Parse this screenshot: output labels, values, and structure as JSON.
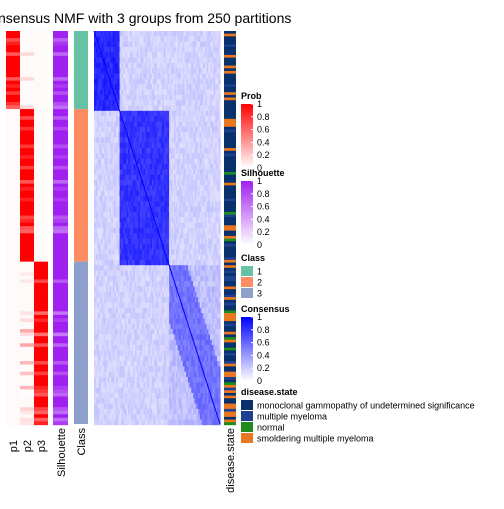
{
  "chart_data": {
    "type": "heatmap",
    "title": "nsensus NMF with 3 groups from 250 partitions",
    "group_order": [
      1,
      1,
      1,
      1,
      1,
      1,
      1,
      1,
      1,
      1,
      1,
      1,
      1,
      1,
      1,
      1,
      1,
      1,
      1,
      1,
      1,
      1,
      1,
      1,
      1,
      1,
      1,
      1,
      1,
      1,
      1,
      1,
      1,
      1,
      1,
      1,
      1,
      1,
      1,
      1,
      1,
      1,
      1,
      1,
      1,
      1,
      1,
      1,
      1,
      1,
      1,
      1,
      1,
      1,
      1,
      1,
      1,
      1,
      1,
      1,
      1,
      1,
      1,
      1,
      1,
      1,
      1,
      1,
      1,
      1,
      1,
      1,
      1,
      1,
      1,
      1,
      1,
      1,
      1,
      1,
      1,
      1,
      1,
      1,
      1,
      1,
      1,
      1,
      2,
      2,
      2,
      2,
      2,
      2,
      2,
      2,
      2,
      2,
      2,
      2,
      2,
      2,
      2,
      2,
      2,
      2,
      2,
      2,
      2,
      2,
      2,
      2,
      2,
      2,
      2,
      2,
      2,
      2,
      2,
      2,
      2,
      2,
      2,
      2,
      2,
      2,
      2,
      2,
      2,
      2,
      2,
      2,
      2,
      2,
      2,
      2,
      2,
      2,
      2,
      2,
      2,
      2,
      2,
      2,
      2,
      2,
      2,
      2,
      2,
      2,
      2,
      2,
      2,
      2,
      2,
      2,
      2,
      2,
      2,
      2,
      2,
      2,
      2,
      2,
      2,
      2,
      2,
      2,
      2,
      2,
      2,
      2,
      2,
      2,
      2,
      2,
      2,
      2,
      2,
      2,
      2,
      2,
      2,
      2,
      2,
      2,
      2,
      2,
      2,
      2,
      2,
      2,
      2,
      2,
      2,
      2,
      2,
      2,
      2,
      2,
      2,
      2,
      2,
      2,
      2,
      2,
      2,
      2,
      2,
      2,
      2,
      2,
      2,
      2,
      2,
      2,
      2,
      2,
      2,
      2,
      2,
      2,
      2,
      2,
      2,
      2,
      2,
      2,
      2,
      2,
      2,
      2,
      2,
      2,
      2,
      2,
      2,
      2,
      2,
      2,
      2,
      2,
      2,
      2,
      2,
      2,
      2,
      2,
      2,
      2,
      2,
      2,
      2,
      2,
      2,
      2,
      2,
      2,
      2,
      2,
      3,
      3,
      3,
      3,
      3,
      3,
      3,
      3,
      3,
      3,
      3,
      3,
      3,
      3,
      3,
      3,
      3,
      3,
      3,
      3,
      3,
      3,
      3,
      3,
      3,
      3,
      3,
      3,
      3,
      3,
      3,
      3,
      3,
      3,
      3,
      3,
      3,
      3,
      3,
      3,
      3,
      3,
      3,
      3,
      3,
      3,
      3,
      3,
      3,
      3,
      3,
      3,
      3,
      3,
      3,
      3,
      3,
      3,
      3,
      3,
      3,
      3,
      3,
      3,
      3,
      3,
      3,
      3,
      3,
      3,
      3,
      3,
      3,
      3,
      3,
      3,
      3,
      3,
      3,
      3,
      3,
      3,
      3,
      3,
      3,
      3,
      3,
      3,
      3,
      3,
      3,
      3,
      3,
      3,
      3,
      3,
      3,
      3,
      3,
      3,
      3,
      3,
      3,
      3,
      3,
      3,
      3,
      3,
      3,
      3,
      3,
      3,
      3,
      3,
      3,
      3,
      3,
      3,
      3,
      3,
      3,
      3,
      3,
      3,
      3,
      3,
      3,
      3,
      3,
      3,
      3,
      3,
      3,
      3,
      3,
      3,
      3,
      3,
      3,
      3,
      3,
      3,
      3,
      3,
      3,
      3,
      3,
      3,
      3,
      3,
      3,
      3,
      3,
      3,
      3,
      3,
      3,
      3,
      3,
      3,
      3,
      3,
      3,
      3,
      3,
      3,
      3,
      3,
      3,
      3,
      3,
      3,
      3,
      3,
      3,
      3,
      3,
      3,
      3,
      3,
      3,
      3,
      3
    ],
    "row_annotations": [
      {
        "label": "p1",
        "scale": "Prob"
      },
      {
        "label": "p2",
        "scale": "Prob"
      },
      {
        "label": "p3",
        "scale": "Prob"
      },
      {
        "label": "Silhouette",
        "scale": "Silhouette"
      },
      {
        "label": "Class",
        "scale": "Class"
      }
    ],
    "column_annotation": {
      "label": "disease.state"
    },
    "legends": [
      {
        "title": "Prob",
        "type": "gradient",
        "ticks": [
          "1",
          "0.8",
          "0.6",
          "0.4",
          "0.2",
          "0"
        ],
        "low": "#FFFFFF",
        "high": "#FF0000"
      },
      {
        "title": "Silhouette",
        "type": "gradient",
        "ticks": [
          "1",
          "0.8",
          "0.6",
          "0.4",
          "0.2",
          "0"
        ],
        "low": "#FFFFFF",
        "high": "#A020F0"
      },
      {
        "title": "Class",
        "type": "discrete",
        "items": [
          {
            "label": "1",
            "color": "#66C2A5"
          },
          {
            "label": "2",
            "color": "#FC8D62"
          },
          {
            "label": "3",
            "color": "#8DA0CB"
          }
        ]
      },
      {
        "title": "Consensus",
        "type": "gradient",
        "ticks": [
          "1",
          "0.8",
          "0.6",
          "0.4",
          "0.2",
          "0"
        ],
        "low": "#FFFFFF",
        "high": "#0000FF"
      },
      {
        "title": "disease.state",
        "type": "discrete",
        "items": [
          {
            "label": "monoclonal gammopathy of undetermined significance",
            "color": "#08306B"
          },
          {
            "label": "multiple myeloma",
            "color": "#1F3F8F"
          },
          {
            "label": "normal",
            "color": "#1E8B1E"
          },
          {
            "label": "smoldering multiple myeloma",
            "color": "#E87722"
          }
        ]
      }
    ]
  }
}
